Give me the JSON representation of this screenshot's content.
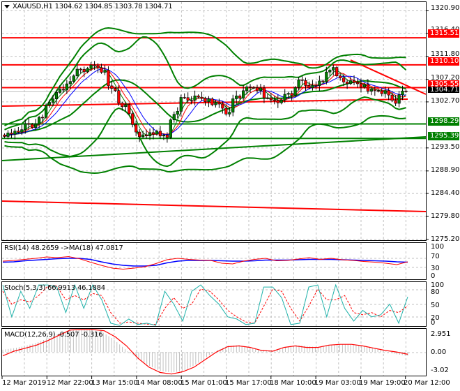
{
  "header": {
    "symbol": "XAUUSD,H1",
    "open": "1304.62",
    "high": "1304.85",
    "low": "1303.78",
    "close": "1304.71"
  },
  "colors": {
    "background": "#ffffff",
    "grid": "#c0c0c0",
    "frame": "#000000",
    "resistance": "#ff0000",
    "support": "#008000",
    "bull_candle": "#008000",
    "bear_candle": "#ff0000",
    "bollinger": "#008000",
    "ma_fast": "#008000",
    "ma_mid": "#ff0000",
    "ma_slow": "#0000ff",
    "rsi": "#ff0000",
    "rsi_ma": "#0000ff",
    "stoch_main": "#20b2aa",
    "stoch_signal": "#ff0000",
    "macd_hist": "#c0c0c0",
    "macd_signal": "#ff0000",
    "current_price_bg": "#000000"
  },
  "price_axis": {
    "ticks": [
      "1320.90",
      "1316.40",
      "1311.80",
      "1307.20",
      "1302.70",
      "1293.50",
      "1288.90",
      "1284.40",
      "1279.80",
      "1275.20"
    ]
  },
  "price_levels": {
    "resistance": [
      "1315.51",
      "1310.10",
      "1305.55"
    ],
    "support": [
      "1298.29",
      "1295.39"
    ],
    "current": "1304.71"
  },
  "rsi_pane": {
    "label": "RSI(14) 48.2659  ->MA(18) 47.0817",
    "ticks": [
      "100",
      "70",
      "30",
      "0"
    ]
  },
  "stoch_pane": {
    "label": "Stoch(5,3,3) 66.9913 46.1884",
    "ticks": [
      "100",
      "80",
      "50",
      "20",
      "0"
    ]
  },
  "macd_pane": {
    "label": "MACD(12,26,9) -0.507 -0.316",
    "ticks": [
      "2.951",
      "0.00",
      "-3.02"
    ]
  },
  "time_axis": {
    "ticks": [
      "12 Mar 2019",
      "12 Mar 22:00",
      "13 Mar 15:00",
      "14 Mar 08:00",
      "15 Mar 01:00",
      "15 Mar 17:00",
      "18 Mar 10:00",
      "19 Mar 03:00",
      "19 Mar 19:00",
      "20 Mar 12:00"
    ]
  },
  "chart_data": [
    {
      "type": "candlestick",
      "title": "XAUUSD,H1 1304.62 1304.85 1303.78 1304.71",
      "xlabel": "",
      "ylabel": "Price",
      "ylim": [
        1275.2,
        1322.5
      ],
      "x_ticks": [
        "12 Mar 2019",
        "12 Mar 22:00",
        "13 Mar 15:00",
        "14 Mar 08:00",
        "15 Mar 01:00",
        "15 Mar 17:00",
        "18 Mar 10:00",
        "19 Mar 03:00",
        "19 Mar 19:00",
        "20 Mar 12:00"
      ],
      "y_ticks": [
        1320.9,
        1316.4,
        1311.8,
        1307.2,
        1302.7,
        1293.5,
        1288.9,
        1284.4,
        1279.8,
        1275.2
      ],
      "last_bar": {
        "open": 1304.62,
        "high": 1304.85,
        "low": 1303.78,
        "close": 1304.71
      },
      "horizontal_levels": [
        {
          "name": "resistance",
          "value": 1315.51,
          "color": "#ff0000"
        },
        {
          "name": "resistance",
          "value": 1310.1,
          "color": "#ff0000"
        },
        {
          "name": "resistance",
          "value": 1305.55,
          "color": "#ff0000"
        },
        {
          "name": "support",
          "value": 1298.29,
          "color": "#008000"
        },
        {
          "name": "support",
          "value": 1295.39,
          "color": "#008000"
        }
      ],
      "trendlines": [
        {
          "name": "descending resistance",
          "color": "#ff0000",
          "from": [
            1310.3,
            "19 Mar 06:00"
          ],
          "to": [
            1303.9,
            "20 Mar 14:00"
          ]
        },
        {
          "name": "rising red trend",
          "color": "#ff0000",
          "from_value": 1301.7,
          "to_value": 1303.6
        },
        {
          "name": "rising green trend",
          "color": "#008000",
          "from_value": 1290.4,
          "to_value": 1295.1
        },
        {
          "name": "falling red trend",
          "color": "#ff0000",
          "from_value": 1281.9,
          "to_value": 1279.3
        }
      ],
      "approx_close_path": [
        1296.5,
        1297.2,
        1298.0,
        1299.6,
        1303.0,
        1305.4,
        1307.8,
        1309.2,
        1309.8,
        1308.5,
        1305.0,
        1302.0,
        1297.0,
        1295.6,
        1296.4,
        1295.8,
        1301.0,
        1303.5,
        1303.6,
        1302.9,
        1302.5,
        1300.4,
        1304.0,
        1305.5,
        1305.0,
        1303.2,
        1303.0,
        1304.5,
        1306.8,
        1305.5,
        1307.0,
        1309.7,
        1307.0,
        1306.5,
        1305.8,
        1305.2,
        1304.8,
        1302.8,
        1304.71
      ],
      "indicators": [
        "Bollinger Bands",
        "Moving Average (fast, green)",
        "Moving Average (mid, red)",
        "Moving Average (slow, blue)"
      ]
    },
    {
      "type": "line",
      "title": "RSI(14) 48.2659 ->MA(18) 47.0817",
      "ylim": [
        0,
        100
      ],
      "y_ticks": [
        100,
        70,
        30,
        0
      ],
      "series": [
        {
          "name": "RSI(14)",
          "color": "#ff0000",
          "last": 48.2659,
          "values": [
            50,
            52,
            55,
            58,
            62,
            60,
            63,
            57,
            47,
            38,
            30,
            27,
            30,
            34,
            43,
            54,
            58,
            55,
            53,
            52,
            44,
            42,
            50,
            55,
            58,
            51,
            52,
            56,
            60,
            55,
            58,
            54,
            52,
            49,
            47,
            44,
            40,
            48
          ]
        },
        {
          "name": "MA(18)",
          "color": "#0000ff",
          "last": 47.0817,
          "values": [
            47,
            48,
            51,
            53,
            55,
            57,
            58,
            58,
            55,
            48,
            42,
            38,
            36,
            36,
            38,
            45,
            50,
            52,
            52,
            52,
            51,
            50,
            50,
            51,
            53,
            53,
            53,
            54,
            55,
            55,
            55,
            54,
            53,
            52,
            51,
            50,
            48,
            47
          ]
        }
      ]
    },
    {
      "type": "line",
      "title": "Stoch(5,3,3) 66.9913 46.1884",
      "ylim": [
        0,
        100
      ],
      "y_ticks": [
        100,
        80,
        50,
        20,
        0
      ],
      "series": [
        {
          "name": "%K",
          "color": "#20b2aa",
          "last": 66.9913,
          "values": [
            95,
            20,
            80,
            40,
            95,
            95,
            90,
            30,
            95,
            40,
            95,
            60,
            5,
            0,
            15,
            2,
            5,
            0,
            80,
            50,
            10,
            80,
            95,
            70,
            50,
            20,
            15,
            2,
            5,
            90,
            90,
            65,
            2,
            5,
            90,
            95,
            20,
            95,
            40,
            10,
            35,
            20,
            25,
            50,
            5,
            67
          ]
        },
        {
          "name": "%D",
          "color": "#ff0000",
          "last": 46.1884,
          "values": [
            80,
            50,
            60,
            55,
            70,
            92,
            92,
            60,
            70,
            60,
            75,
            70,
            30,
            5,
            8,
            5,
            3,
            2,
            40,
            65,
            40,
            50,
            85,
            80,
            60,
            35,
            20,
            8,
            5,
            45,
            85,
            80,
            40,
            10,
            45,
            85,
            60,
            60,
            70,
            30,
            25,
            30,
            20,
            35,
            30,
            46
          ]
        }
      ]
    },
    {
      "type": "bar",
      "title": "MACD(12,26,9) -0.507 -0.316",
      "ylim": [
        -3.02,
        2.951
      ],
      "y_ticks": [
        2.951,
        0.0,
        -3.02
      ],
      "series": [
        {
          "name": "MACD histogram",
          "color": "#c0c0c0",
          "last": -0.507,
          "values": [
            0.3,
            0.5,
            0.8,
            1.2,
            1.8,
            2.4,
            2.9,
            2.9,
            2.9,
            2.5,
            1.5,
            0.2,
            -0.8,
            -1.8,
            -2.5,
            -2.7,
            -2.5,
            -1.8,
            -0.8,
            0.2,
            0.8,
            0.9,
            0.6,
            0.3,
            0.2,
            0.6,
            0.9,
            0.8,
            0.6,
            0.9,
            1.0,
            1.0,
            0.8,
            0.5,
            0.1,
            -0.3,
            -0.5
          ]
        },
        {
          "name": "Signal",
          "color": "#ff0000",
          "last": -0.316,
          "values": [
            -0.5,
            0.1,
            0.5,
            0.9,
            1.5,
            2.2,
            2.9,
            2.95,
            2.95,
            2.8,
            2.0,
            0.8,
            -0.8,
            -2.0,
            -2.7,
            -2.9,
            -2.6,
            -2.0,
            -1.0,
            0.0,
            0.7,
            0.8,
            0.6,
            0.2,
            0.1,
            0.6,
            0.8,
            0.6,
            0.6,
            0.9,
            1.0,
            1.0,
            0.8,
            0.5,
            0.2,
            0.0,
            -0.3
          ]
        }
      ]
    }
  ]
}
